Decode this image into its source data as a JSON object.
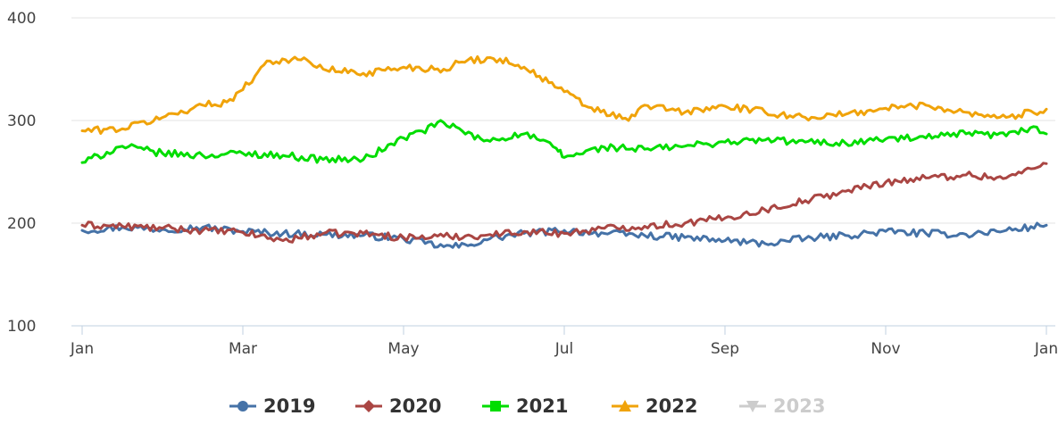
{
  "chart_data": {
    "type": "line",
    "title": "",
    "xlabel": "",
    "ylabel": "",
    "x_ticks": [
      "Jan",
      "Mar",
      "May",
      "Jul",
      "Sep",
      "Nov",
      "Jan"
    ],
    "y_ticks": [
      100,
      200,
      300,
      400
    ],
    "ylim": [
      100,
      400
    ],
    "x_domain_months": [
      0,
      12
    ],
    "grid": "horizontal",
    "legend_position": "bottom-center",
    "series": [
      {
        "name": "2019",
        "color": "#4572a7",
        "marker": "circle",
        "visible": true,
        "points": [
          [
            0,
            193
          ],
          [
            0.5,
            196
          ],
          [
            1,
            194
          ],
          [
            1.5,
            196
          ],
          [
            2,
            192
          ],
          [
            2.5,
            190
          ],
          [
            3,
            189
          ],
          [
            3.5,
            188
          ],
          [
            4,
            185
          ],
          [
            4.5,
            177
          ],
          [
            4.8,
            178
          ],
          [
            5,
            184
          ],
          [
            5.5,
            190
          ],
          [
            6,
            193
          ],
          [
            6.5,
            190
          ],
          [
            7,
            188
          ],
          [
            7.5,
            186
          ],
          [
            8,
            183
          ],
          [
            8.5,
            180
          ],
          [
            9,
            185
          ],
          [
            9.5,
            188
          ],
          [
            10,
            192
          ],
          [
            10.5,
            190
          ],
          [
            11,
            189
          ],
          [
            11.5,
            193
          ],
          [
            12,
            198
          ]
        ]
      },
      {
        "name": "2020",
        "color": "#aa4643",
        "marker": "diamond",
        "visible": true,
        "points": [
          [
            0,
            198
          ],
          [
            0.5,
            197
          ],
          [
            1,
            195
          ],
          [
            1.5,
            193
          ],
          [
            2,
            191
          ],
          [
            2.5,
            183
          ],
          [
            3,
            190
          ],
          [
            3.5,
            190
          ],
          [
            4,
            186
          ],
          [
            4.5,
            187
          ],
          [
            5,
            188
          ],
          [
            5.5,
            192
          ],
          [
            6,
            190
          ],
          [
            6.5,
            195
          ],
          [
            7,
            197
          ],
          [
            7.5,
            200
          ],
          [
            8,
            205
          ],
          [
            8.5,
            213
          ],
          [
            9,
            222
          ],
          [
            9.5,
            231
          ],
          [
            10,
            240
          ],
          [
            10.5,
            244
          ],
          [
            11,
            247
          ],
          [
            11.5,
            244
          ],
          [
            12,
            258
          ]
        ]
      },
      {
        "name": "2021",
        "color": "#00dd00",
        "marker": "square",
        "visible": true,
        "points": [
          [
            0,
            259
          ],
          [
            0.5,
            275
          ],
          [
            1,
            268
          ],
          [
            1.5,
            266
          ],
          [
            2,
            268
          ],
          [
            2.5,
            266
          ],
          [
            3,
            262
          ],
          [
            3.5,
            262
          ],
          [
            4,
            283
          ],
          [
            4.5,
            298
          ],
          [
            5,
            280
          ],
          [
            5.5,
            287
          ],
          [
            5.9,
            273
          ],
          [
            6,
            264
          ],
          [
            6.5,
            274
          ],
          [
            7,
            272
          ],
          [
            7.5,
            275
          ],
          [
            8,
            279
          ],
          [
            8.5,
            281
          ],
          [
            9,
            279
          ],
          [
            9.5,
            278
          ],
          [
            10,
            282
          ],
          [
            10.5,
            283
          ],
          [
            11,
            287
          ],
          [
            11.5,
            285
          ],
          [
            11.8,
            293
          ],
          [
            12,
            287
          ]
        ]
      },
      {
        "name": "2022",
        "color": "#f0a30a",
        "marker": "triangle",
        "visible": true,
        "points": [
          [
            0,
            290
          ],
          [
            0.5,
            292
          ],
          [
            1,
            303
          ],
          [
            1.5,
            315
          ],
          [
            1.8,
            318
          ],
          [
            2,
            330
          ],
          [
            2.3,
            358
          ],
          [
            2.8,
            359
          ],
          [
            3,
            350
          ],
          [
            3.5,
            346
          ],
          [
            4,
            352
          ],
          [
            4.5,
            350
          ],
          [
            4.8,
            359
          ],
          [
            5.2,
            360
          ],
          [
            5.5,
            352
          ],
          [
            6,
            328
          ],
          [
            6.3,
            313
          ],
          [
            6.8,
            300
          ],
          [
            7,
            315
          ],
          [
            7.5,
            308
          ],
          [
            8,
            314
          ],
          [
            8.5,
            308
          ],
          [
            9,
            303
          ],
          [
            9.5,
            306
          ],
          [
            10,
            312
          ],
          [
            10.5,
            315
          ],
          [
            11,
            308
          ],
          [
            11.5,
            303
          ],
          [
            12,
            311
          ]
        ]
      },
      {
        "name": "2023",
        "color": "#cccccc",
        "marker": "triangle-down",
        "visible": false,
        "points": []
      }
    ]
  }
}
